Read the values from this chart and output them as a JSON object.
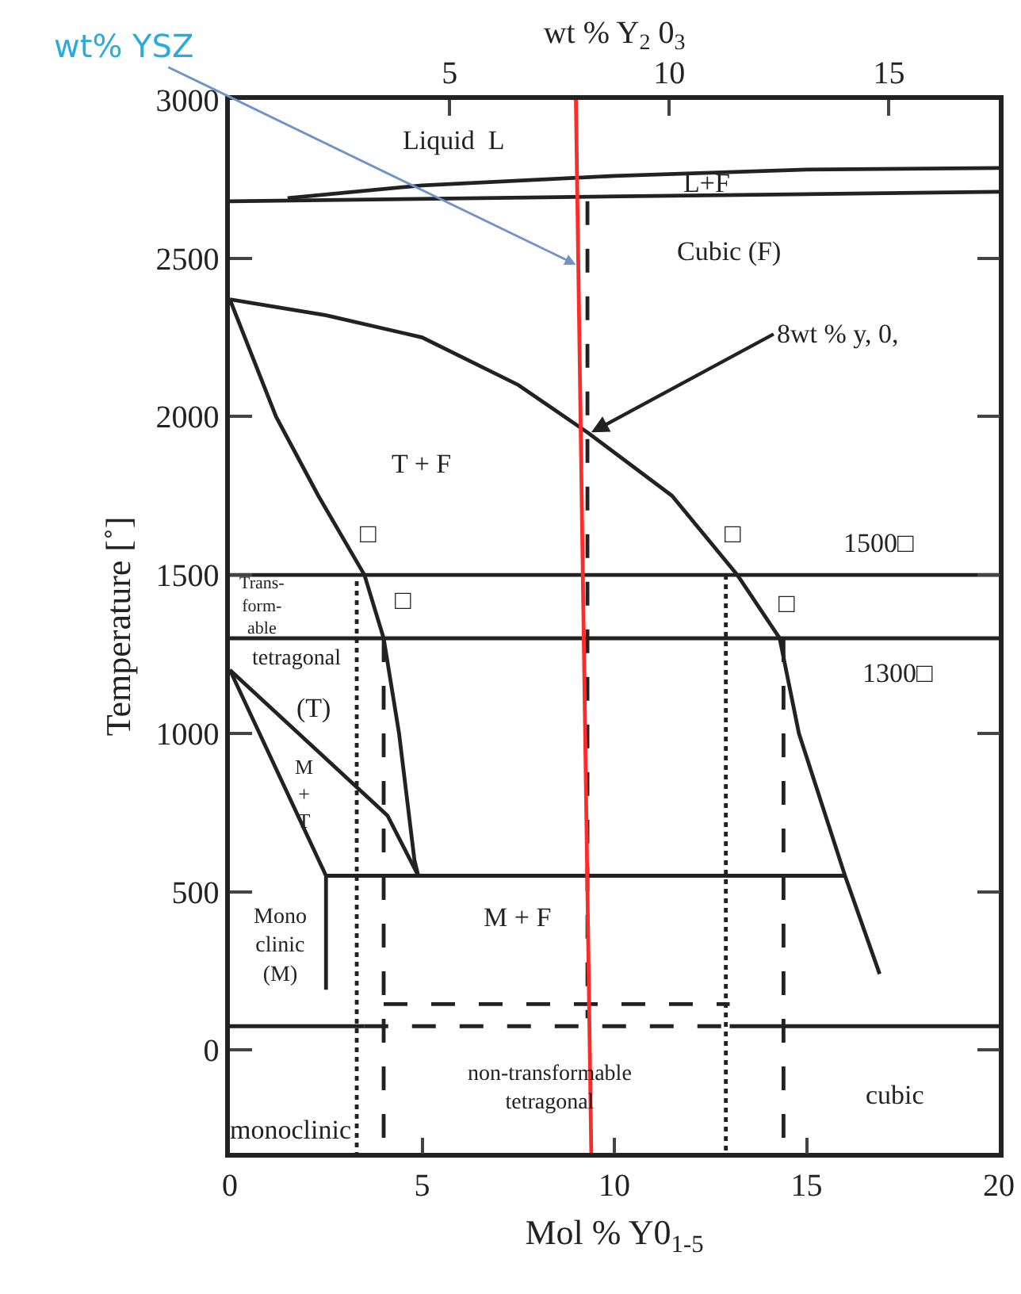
{
  "chart_data": {
    "type": "line",
    "xlabel": "Mol % Y0$_{1-5}$",
    "x2label": "wt % Y$_{2}$ 0$_{3}$",
    "ylabel": "Temperature [˚]",
    "xlim": [
      0,
      20
    ],
    "xticks": [
      0,
      5,
      10,
      15,
      20
    ],
    "x2lim": [
      0,
      17.5
    ],
    "x2ticks": [
      5,
      10,
      15
    ],
    "ylim": [
      -325,
      3000
    ],
    "yticks": [
      0,
      500,
      1000,
      1500,
      2000,
      2500,
      3000
    ],
    "marker": "none",
    "line_style": "solid",
    "series": [
      {
        "color": "#222222",
        "x": [
          1.5,
          5,
          10,
          15,
          20
        ],
        "values": [
          2690,
          2730,
          2760,
          2780,
          2785
        ]
      },
      {
        "color": "#222222",
        "x": [
          0,
          20
        ],
        "values": [
          2680,
          2710
        ]
      },
      {
        "color": "#222222",
        "x": [
          0,
          1.2,
          2.3,
          3.5,
          4.0,
          4.4,
          4.8,
          4.9
        ],
        "values": [
          2370,
          2000,
          1750,
          1500,
          1300,
          1000,
          600,
          550
        ]
      },
      {
        "color": "#222222",
        "x": [
          0,
          2.5,
          5,
          7.5,
          9.3,
          11.5,
          13.2,
          14.3,
          14.8,
          16,
          16.9
        ],
        "values": [
          2370,
          2320,
          2250,
          2100,
          1950,
          1750,
          1500,
          1300,
          1000,
          550,
          240
        ]
      },
      {
        "color": "#222222",
        "x": [
          2.5,
          16
        ],
        "values": [
          550,
          550
        ]
      },
      {
        "color": "#222222",
        "x": [
          0,
          2.5,
          2.5
        ],
        "values": [
          1200,
          550,
          190
        ]
      },
      {
        "color": "#222222",
        "x": [
          0,
          4.1,
          4.9
        ],
        "values": [
          1200,
          740,
          550
        ]
      },
      {
        "color": "#222222",
        "x": [
          0,
          20
        ],
        "values": [
          1500,
          1500
        ]
      },
      {
        "color": "#222222",
        "x": [
          0,
          20
        ],
        "values": [
          1300,
          1300
        ]
      },
      {
        "color": "#222222",
        "x": [
          0,
          3.5
        ],
        "values": [
          75,
          75
        ]
      },
      {
        "color": "#222222",
        "line_style": "dashed",
        "x": [
          3.5,
          13
        ],
        "values": [
          75,
          75
        ]
      },
      {
        "color": "#222222",
        "x": [
          13,
          20
        ],
        "values": [
          75,
          75
        ]
      },
      {
        "color": "#222222",
        "line_style": "dashed",
        "x": [
          4,
          13
        ],
        "values": [
          145,
          145
        ]
      },
      {
        "color": "#222222",
        "line_style": "dotted",
        "x": [
          3.3,
          3.3
        ],
        "values": [
          1480,
          -325
        ]
      },
      {
        "color": "#222222",
        "line_style": "dotted",
        "x": [
          12.9,
          12.9
        ],
        "values": [
          1500,
          -325
        ]
      },
      {
        "color": "#222222",
        "line_style": "dashed",
        "x": [
          4.0,
          4.0
        ],
        "values": [
          1300,
          -325
        ]
      },
      {
        "color": "#222222",
        "line_style": "dashed",
        "x": [
          14.4,
          14.4
        ],
        "values": [
          1300,
          -325
        ]
      },
      {
        "color": "#222222",
        "line_style": "dashed",
        "x": [
          9.3,
          9.3
        ],
        "values": [
          2680,
          100
        ]
      },
      {
        "color": "#ff2a2a",
        "x": [
          9.0,
          9.4
        ],
        "values": [
          3000,
          -325
        ]
      }
    ],
    "annotations": [
      "Liquid  L",
      "L+F",
      "Cubic (F)",
      {
        "text": "8wt % y, 0,",
        "x": 9.4,
        "y": 1950
      },
      {
        "text": "wt% YSZ",
        "x": 9.0,
        "y": 2480
      },
      "T + F",
      "□",
      "□",
      "□",
      "□",
      "1500□",
      "1300□",
      "Trans-\nform-\nable",
      "tetragonal",
      "(T)",
      "M\n+\nT",
      "Mono\nclinic\n(M)",
      "M + F",
      "non-transformable\ntetragonal",
      "cubic",
      "monoclinic"
    ]
  }
}
